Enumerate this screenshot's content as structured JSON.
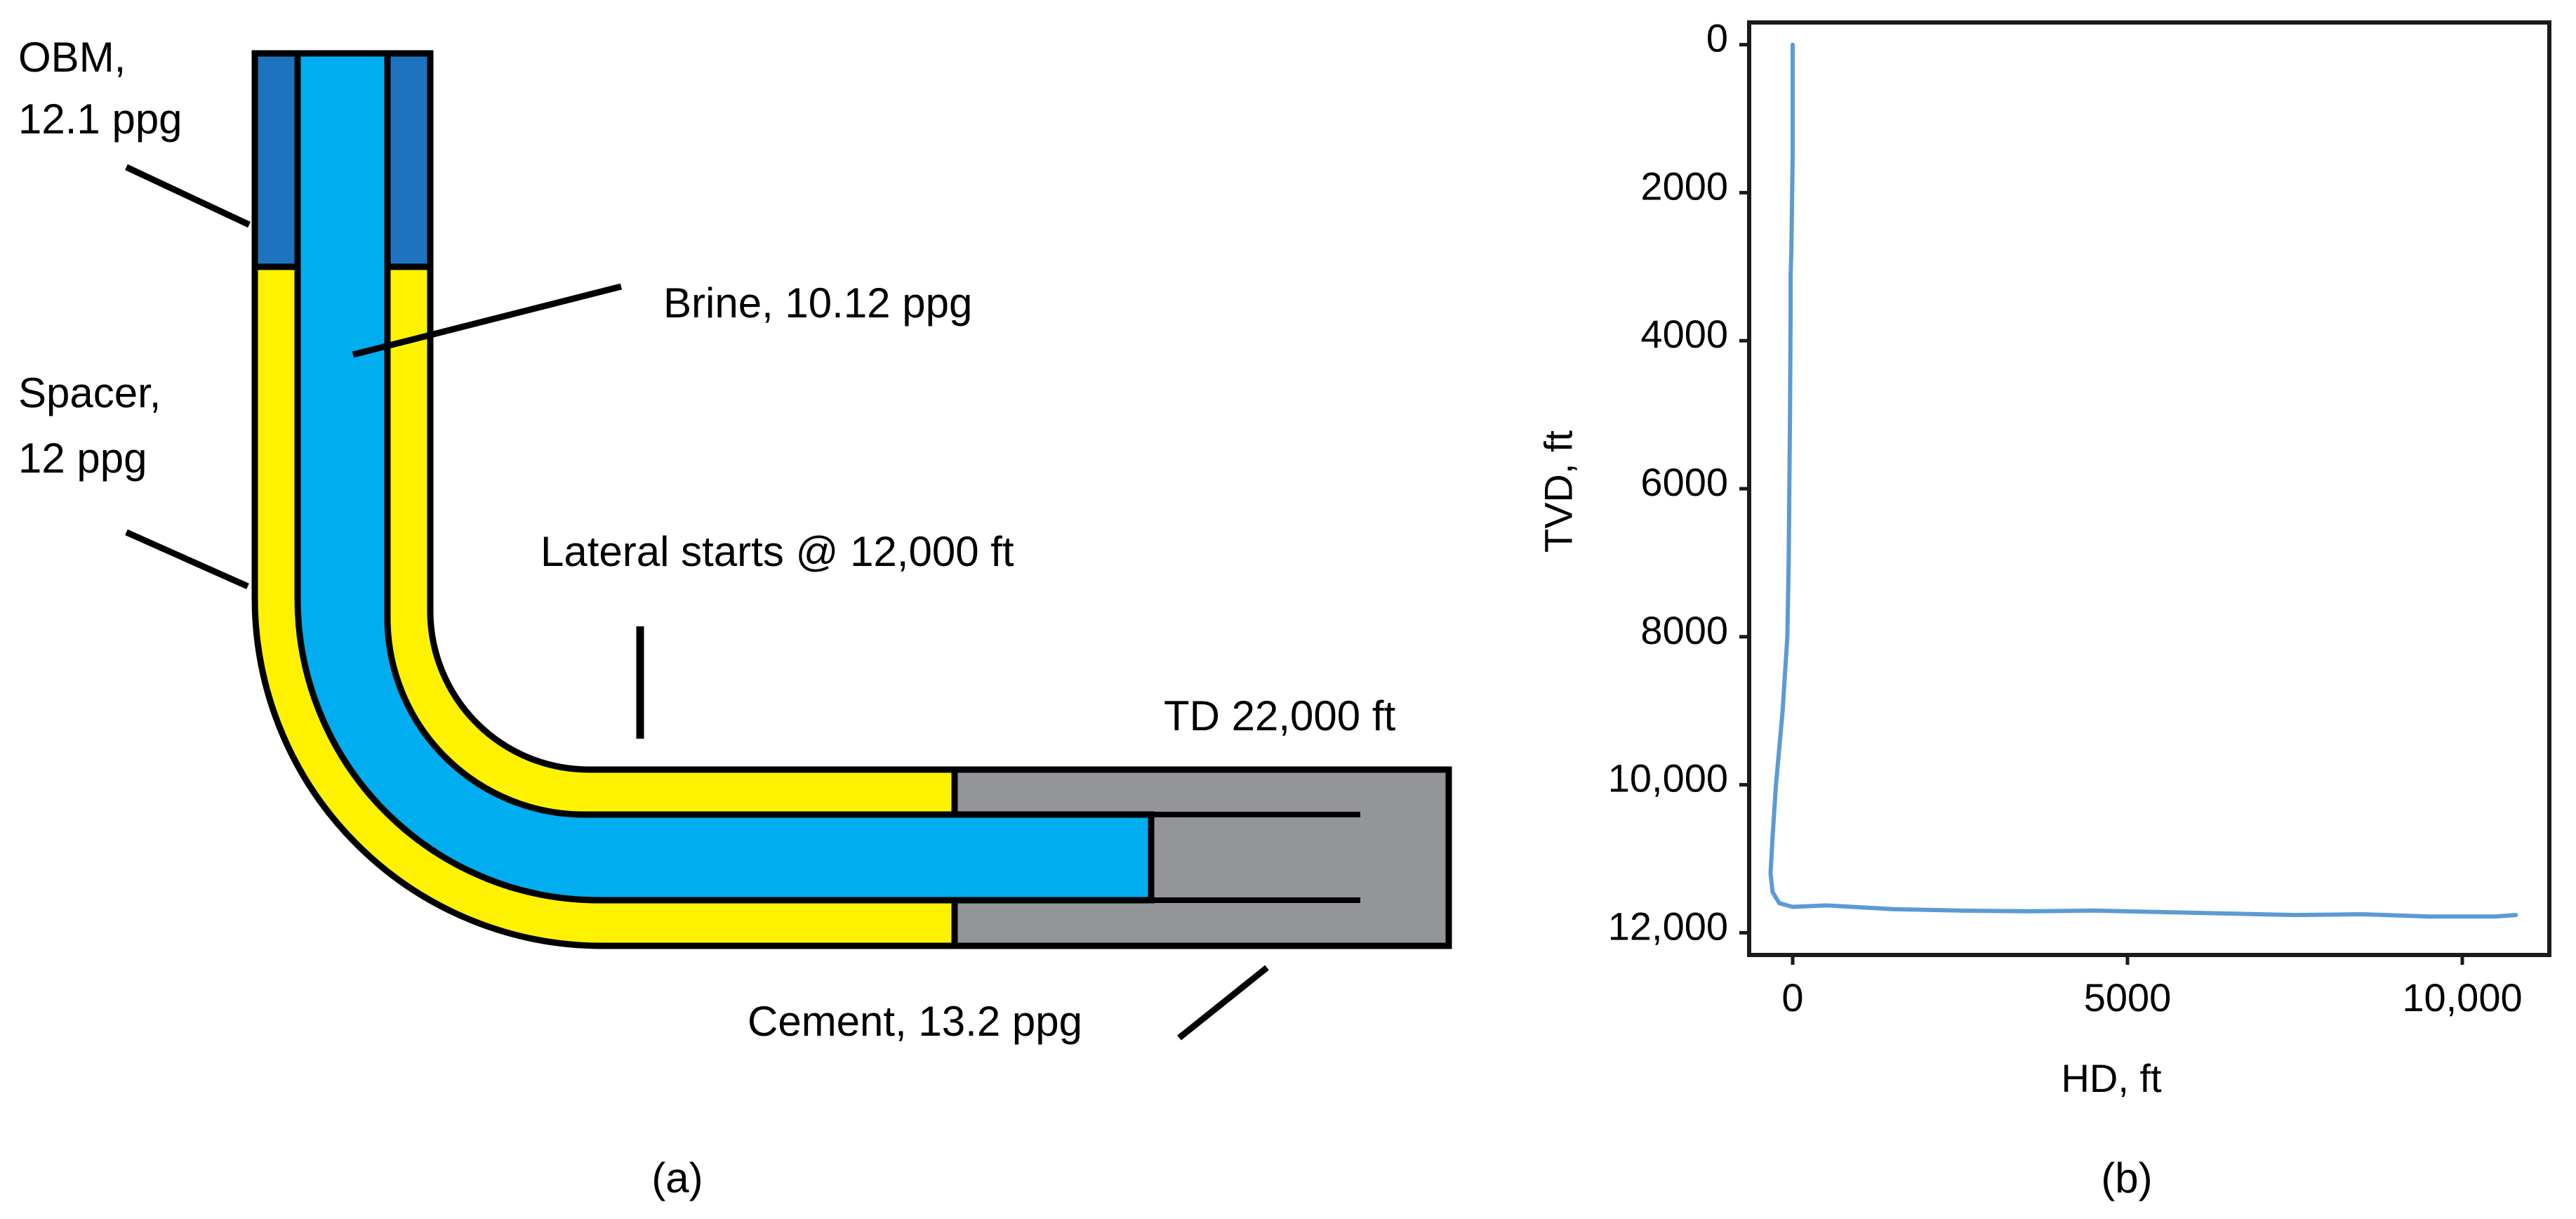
{
  "panel_a": {
    "caption": "(a)",
    "labels": {
      "obm_line1": "OBM,",
      "obm_line2": "12.1 ppg",
      "brine": "Brine, 10.12 ppg",
      "spacer_line1": "Spacer,",
      "spacer_line2": "12 ppg",
      "lateral": "Lateral starts @ 12,000 ft",
      "td": "TD 22,000 ft",
      "cement": "Cement, 13.2 ppg"
    },
    "colors": {
      "obm": "#1E73BE",
      "brine": "#00AEEF",
      "spacer": "#FFF200",
      "cement": "#939598",
      "outline": "#000000"
    }
  },
  "panel_b": {
    "caption": "(b)",
    "chart_data": {
      "type": "line",
      "xlabel": "HD, ft",
      "ylabel": "TVD, ft",
      "xlim": [
        -650,
        11300
      ],
      "ylim": [
        12300,
        -300
      ],
      "y_inverted": true,
      "grid": false,
      "x_ticks": [
        0,
        5000,
        10000
      ],
      "x_tick_labels": [
        "0",
        "5000",
        "10,000"
      ],
      "y_ticks": [
        0,
        2000,
        4000,
        6000,
        8000,
        10000,
        12000
      ],
      "y_tick_labels": [
        "0",
        "2000",
        "4000",
        "6000",
        "8000",
        "10,000",
        "12,000"
      ],
      "line_color": "#5B9BD5",
      "series": [
        {
          "x": [
            0,
            0,
            -20,
            -30,
            -30,
            -40,
            -60,
            -80,
            -150,
            -250,
            -300,
            -330,
            -300,
            -200,
            0,
            500,
            1500,
            2500,
            3500,
            4500,
            5500,
            6500,
            7500,
            8500,
            9500,
            10500,
            10800
          ],
          "y": [
            0,
            1500,
            2800,
            3100,
            3600,
            5000,
            7000,
            8000,
            9000,
            10000,
            10700,
            11200,
            11450,
            11600,
            11650,
            11630,
            11680,
            11700,
            11710,
            11700,
            11720,
            11740,
            11760,
            11750,
            11780,
            11780,
            11760
          ]
        }
      ]
    }
  }
}
